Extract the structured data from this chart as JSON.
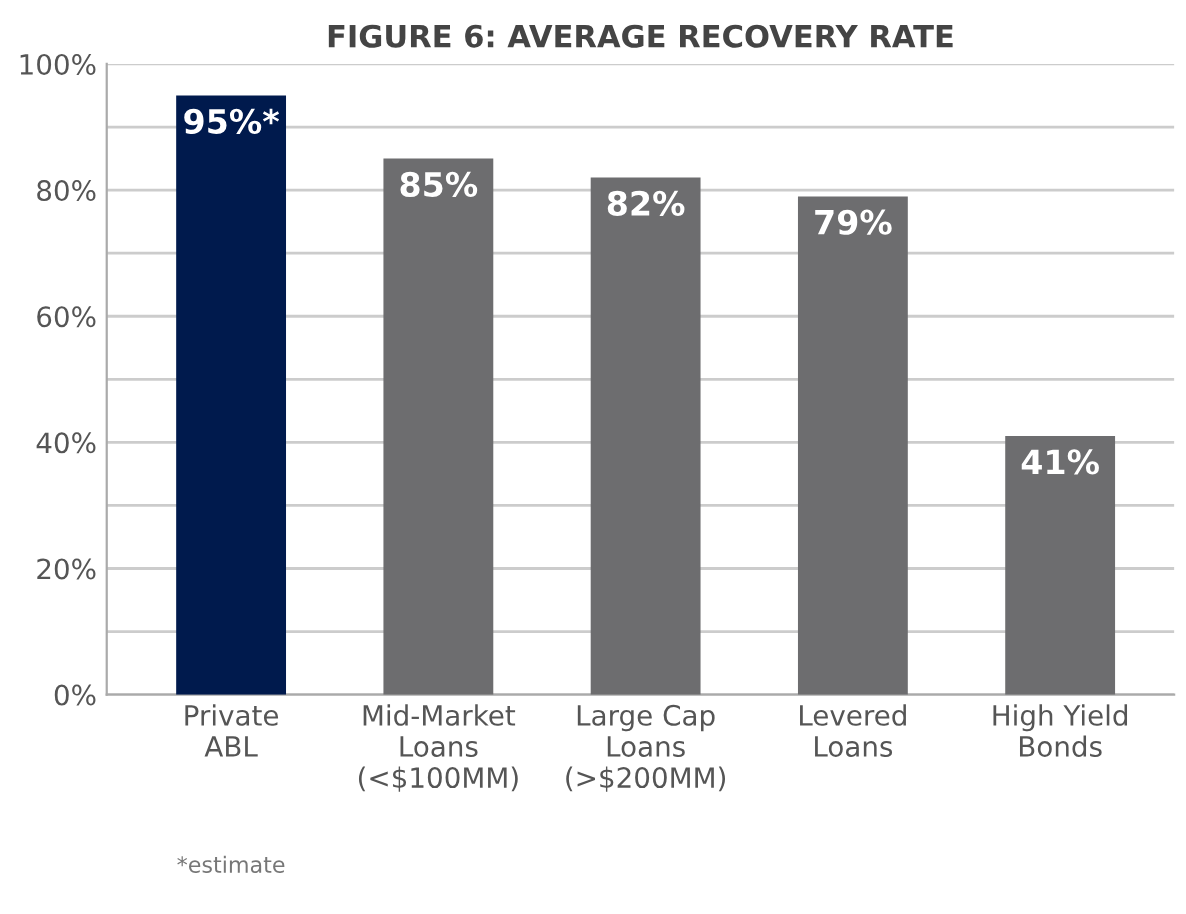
{
  "chart_data": {
    "type": "bar",
    "title": "FIGURE 6: AVERAGE RECOVERY RATE",
    "categories": [
      "Private\nABL",
      "Mid-Market\nLoans\n(<$100MM)",
      "Large Cap\nLoans\n(>$200MM)",
      "Levered\nLoans",
      "High Yield\nBonds"
    ],
    "values": [
      95,
      85,
      82,
      79,
      41
    ],
    "colors": [
      "#001a4d",
      "#6d6d6f",
      "#6d6d6f",
      "#6d6d6f",
      "#6d6d6f"
    ],
    "value_labels": [
      "95%*",
      "85%",
      "82%",
      "79%",
      "41%"
    ],
    "ylim": [
      0,
      100
    ],
    "yticks": [
      {
        "value": 0,
        "label": "0%"
      },
      {
        "value": 10,
        "label": null
      },
      {
        "value": 20,
        "label": "20%"
      },
      {
        "value": 30,
        "label": null
      },
      {
        "value": 40,
        "label": "40%"
      },
      {
        "value": 50,
        "label": null
      },
      {
        "value": 60,
        "label": "60%"
      },
      {
        "value": 70,
        "label": null
      },
      {
        "value": 80,
        "label": "80%"
      },
      {
        "value": 90,
        "label": null
      },
      {
        "value": 100,
        "label": "100%"
      }
    ],
    "grid": "y",
    "annotations": [
      "*estimate"
    ]
  }
}
